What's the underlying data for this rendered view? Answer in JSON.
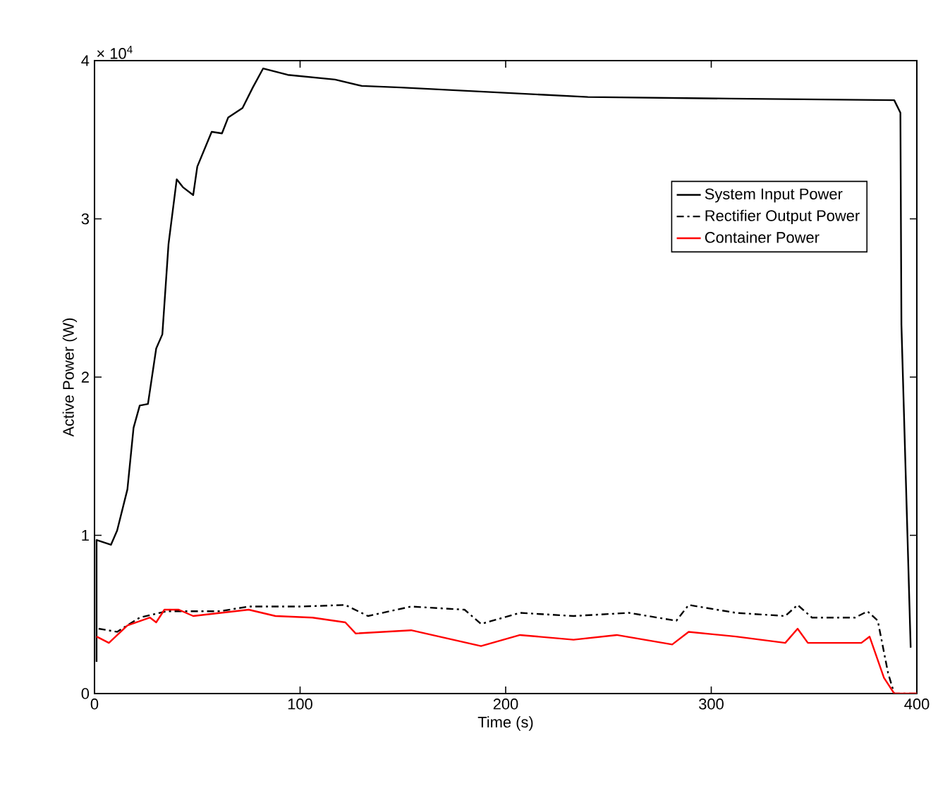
{
  "chart_data": {
    "type": "line",
    "xlabel": "Time (s)",
    "ylabel": "Active Power (W)",
    "xlim": [
      0,
      400
    ],
    "ylim": [
      0,
      4
    ],
    "xticks": [
      0,
      100,
      200,
      300,
      400
    ],
    "yticks": [
      0,
      1,
      2,
      3,
      4
    ],
    "annotations": [
      "× 10$^{4}$"
    ],
    "legend": "top right",
    "grid": false,
    "marker": "none",
    "series": [
      {
        "name": "System Input Power",
        "color": "#000000",
        "line_style": "solid",
        "x": [
          1,
          1,
          8,
          11,
          16,
          19,
          22,
          26,
          30,
          33,
          36,
          40,
          43,
          48,
          50,
          57,
          62,
          65,
          72,
          77,
          82,
          94,
          117,
          130,
          149,
          240,
          309,
          389,
          392,
          392.5,
          397
        ],
        "values": [
          0.2,
          0.97,
          0.94,
          1.03,
          1.29,
          1.68,
          1.82,
          1.83,
          2.18,
          2.27,
          2.84,
          3.25,
          3.2,
          3.15,
          3.33,
          3.55,
          3.54,
          3.64,
          3.7,
          3.83,
          3.95,
          3.91,
          3.88,
          3.84,
          3.83,
          3.77,
          3.76,
          3.75,
          3.67,
          2.33,
          0.29
        ]
      },
      {
        "name": "Rectifier Output Power",
        "color": "#000000",
        "line_style": "dashed",
        "x": [
          2,
          11,
          22,
          35,
          61,
          75,
          101,
          122,
          133,
          154,
          180,
          188,
          207,
          233,
          260,
          283,
          289,
          312,
          336,
          342,
          349,
          370,
          376,
          381,
          386,
          389,
          400
        ],
        "values": [
          0.41,
          0.39,
          0.48,
          0.52,
          0.52,
          0.55,
          0.55,
          0.56,
          0.49,
          0.55,
          0.53,
          0.44,
          0.51,
          0.49,
          0.51,
          0.46,
          0.56,
          0.51,
          0.49,
          0.56,
          0.48,
          0.48,
          0.52,
          0.46,
          0.13,
          0,
          0
        ]
      },
      {
        "name": "Container Power",
        "color": "#ff0000",
        "line_style": "solid",
        "x": [
          1,
          7,
          16,
          27,
          30,
          34,
          41,
          48,
          75,
          88,
          106,
          122,
          127,
          154,
          188,
          207,
          233,
          254,
          281,
          289,
          312,
          336,
          342,
          347,
          373,
          377,
          384,
          389,
          400
        ],
        "values": [
          0.36,
          0.32,
          0.43,
          0.48,
          0.45,
          0.53,
          0.53,
          0.49,
          0.53,
          0.49,
          0.48,
          0.45,
          0.38,
          0.4,
          0.3,
          0.37,
          0.34,
          0.37,
          0.31,
          0.39,
          0.36,
          0.32,
          0.41,
          0.32,
          0.32,
          0.36,
          0.1,
          0,
          0
        ]
      }
    ]
  }
}
